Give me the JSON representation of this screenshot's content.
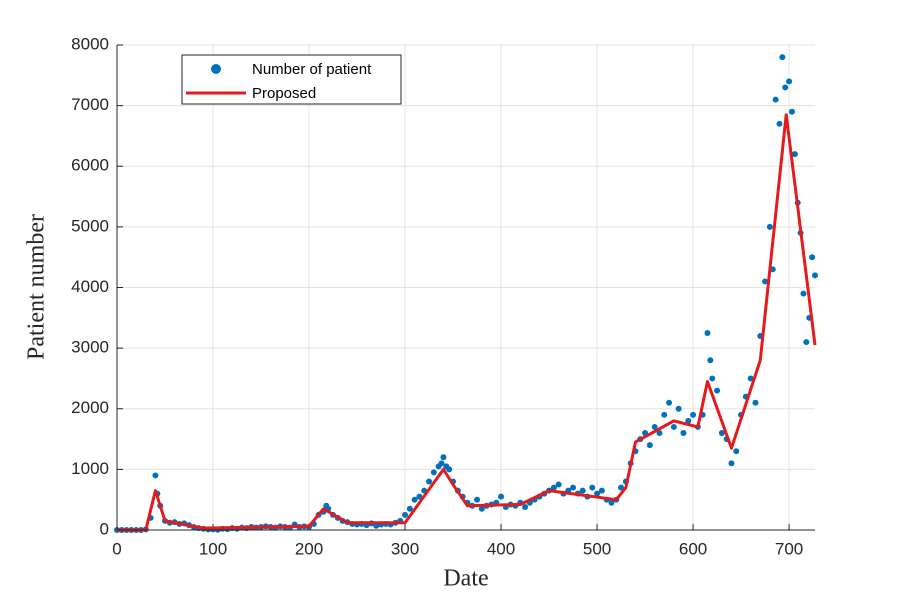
{
  "chart_data": {
    "type": "scatter",
    "xlabel": "Date",
    "ylabel": "Patient number",
    "xlim": [
      0,
      727
    ],
    "ylim": [
      0,
      8000
    ],
    "xticks": [
      0,
      100,
      200,
      300,
      400,
      500,
      600,
      700
    ],
    "yticks": [
      0,
      1000,
      2000,
      3000,
      4000,
      5000,
      6000,
      7000,
      8000
    ],
    "grid": true,
    "legend": "upper left",
    "series": [
      {
        "name": "Number of patient",
        "color": "#0072bd",
        "type": "scatter",
        "x": [
          0,
          5,
          10,
          15,
          20,
          25,
          30,
          35,
          40,
          42,
          45,
          50,
          55,
          60,
          65,
          70,
          75,
          80,
          85,
          90,
          95,
          100,
          105,
          110,
          115,
          120,
          125,
          130,
          135,
          140,
          145,
          150,
          155,
          160,
          165,
          170,
          175,
          180,
          185,
          190,
          195,
          200,
          205,
          210,
          215,
          218,
          220,
          225,
          230,
          235,
          240,
          245,
          250,
          255,
          260,
          265,
          270,
          275,
          280,
          285,
          290,
          295,
          300,
          305,
          310,
          315,
          320,
          325,
          330,
          335,
          338,
          340,
          343,
          346,
          350,
          355,
          360,
          365,
          370,
          375,
          380,
          385,
          390,
          395,
          400,
          405,
          410,
          415,
          420,
          425,
          430,
          435,
          440,
          445,
          450,
          455,
          460,
          465,
          470,
          475,
          480,
          485,
          490,
          495,
          500,
          505,
          510,
          515,
          520,
          525,
          530,
          535,
          540,
          545,
          550,
          555,
          560,
          565,
          570,
          575,
          580,
          585,
          590,
          595,
          600,
          605,
          610,
          615,
          618,
          620,
          625,
          630,
          635,
          640,
          645,
          650,
          655,
          660,
          665,
          670,
          675,
          680,
          683,
          686,
          690,
          693,
          696,
          700,
          703,
          706,
          709,
          712,
          715,
          718,
          721,
          724,
          727
        ],
        "values": [
          0,
          0,
          0,
          0,
          0,
          0,
          10,
          200,
          900,
          600,
          400,
          150,
          120,
          130,
          100,
          110,
          80,
          50,
          30,
          20,
          10,
          10,
          5,
          20,
          15,
          30,
          20,
          40,
          30,
          50,
          40,
          50,
          60,
          50,
          40,
          60,
          50,
          40,
          90,
          50,
          60,
          50,
          100,
          250,
          300,
          400,
          350,
          250,
          200,
          150,
          130,
          100,
          90,
          100,
          80,
          110,
          70,
          90,
          100,
          90,
          120,
          150,
          250,
          350,
          500,
          550,
          650,
          800,
          950,
          1050,
          1100,
          1200,
          1050,
          1000,
          800,
          650,
          550,
          450,
          400,
          500,
          350,
          400,
          420,
          450,
          550,
          380,
          420,
          400,
          450,
          380,
          450,
          500,
          550,
          600,
          650,
          700,
          750,
          600,
          650,
          700,
          600,
          650,
          550,
          700,
          600,
          650,
          500,
          450,
          500,
          700,
          800,
          1100,
          1300,
          1500,
          1600,
          1400,
          1700,
          1600,
          1900,
          2100,
          1700,
          2000,
          1600,
          1800,
          1900,
          1700,
          1900,
          3250,
          2800,
          2500,
          2300,
          1600,
          1500,
          1100,
          1300,
          1900,
          2200,
          2500,
          2100,
          3200,
          4100,
          5000,
          4300,
          7100,
          6700,
          7800,
          7300,
          7400,
          6900,
          6200,
          5400,
          4900,
          3900,
          3100,
          3500,
          4500,
          4200
        ]
      },
      {
        "name": "Proposed",
        "color": "#e41a1c",
        "type": "line",
        "x": [
          0,
          30,
          40,
          50,
          90,
          200,
          215,
          240,
          300,
          340,
          350,
          365,
          420,
          450,
          520,
          530,
          540,
          580,
          605,
          615,
          640,
          670,
          697,
          727
        ],
        "values": [
          0,
          0,
          650,
          150,
          30,
          60,
          350,
          120,
          120,
          1000,
          750,
          400,
          420,
          650,
          500,
          700,
          1450,
          1800,
          1700,
          2450,
          1350,
          2800,
          6850,
          3050
        ]
      }
    ]
  }
}
